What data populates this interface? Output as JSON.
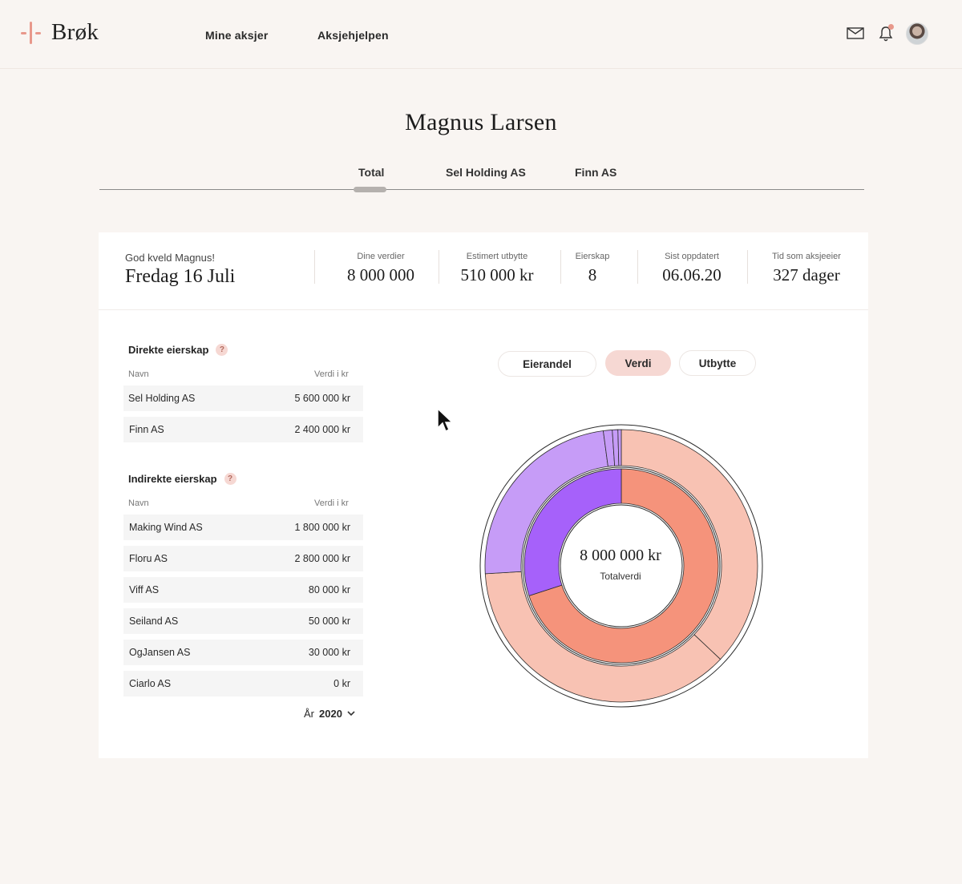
{
  "brand": {
    "name": "Brøk",
    "accent": "#e8988b"
  },
  "nav": {
    "items": [
      "Mine aksjer",
      "Aksjehjelpen"
    ]
  },
  "header_icons": [
    "mail-icon",
    "bell-icon",
    "avatar"
  ],
  "profile": {
    "name": "Magnus Larsen"
  },
  "tabs": [
    {
      "label": "Total",
      "active": true
    },
    {
      "label": "Sel Holding AS",
      "active": false
    },
    {
      "label": "Finn AS",
      "active": false
    }
  ],
  "summary": {
    "greeting": "God kveld Magnus!",
    "date": "Fredag 16 Juli",
    "stats": [
      {
        "label": "Dine verdier",
        "value": "8 000 000"
      },
      {
        "label": "Estimert utbytte",
        "value": "510 000 kr"
      },
      {
        "label": "Eierskap",
        "value": "8"
      },
      {
        "label": "Sist oppdatert",
        "value": "06.06.20"
      },
      {
        "label": "Tid som aksjeeier",
        "value": "327 dager"
      }
    ]
  },
  "direct": {
    "title": "Direkte eierskap",
    "col_name": "Navn",
    "col_value": "Verdi i kr",
    "rows": [
      {
        "name": "Sel Holding AS",
        "value": "5 600 000 kr"
      },
      {
        "name": "Finn AS",
        "value": "2 400 000 kr"
      }
    ]
  },
  "indirect": {
    "title": "Indirekte eierskap",
    "col_name": "Navn",
    "col_value": "Verdi i kr",
    "rows": [
      {
        "name": "Making Wind AS",
        "value": "1 800 000 kr"
      },
      {
        "name": "Floru AS",
        "value": "2 800 000 kr"
      },
      {
        "name": "Viff AS",
        "value": "80 000 kr"
      },
      {
        "name": "Seiland AS",
        "value": "50 000 kr"
      },
      {
        "name": "OgJansen AS",
        "value": "30 000 kr"
      },
      {
        "name": "Ciarlo AS",
        "value": "0 kr"
      }
    ]
  },
  "year_select": {
    "label": "År",
    "value": "2020"
  },
  "toggles": [
    {
      "label": "Eierandel",
      "active": false
    },
    {
      "label": "Verdi",
      "active": true
    },
    {
      "label": "Utbytte",
      "active": false
    }
  ],
  "chart": {
    "center_value": "8 000 000 kr",
    "center_label": "Totalverdi"
  },
  "chart_data": {
    "type": "pie",
    "colors": {
      "inner_salmon": "#f5937b",
      "inner_purple": "#a661fa",
      "outer_salmon": "#f8c2b3",
      "outer_purple": "#c69cf7"
    },
    "inner_ring": [
      {
        "value": 5600000,
        "color": "inner_salmon"
      },
      {
        "value": 2400000,
        "color": "inner_purple"
      }
    ],
    "outer_ring": [
      {
        "value": 2800000,
        "color": "outer_salmon"
      },
      {
        "value": 2800000,
        "color": "outer_salmon"
      },
      {
        "value": 1800000,
        "color": "outer_purple"
      },
      {
        "value": 80000,
        "color": "outer_purple"
      },
      {
        "value": 50000,
        "color": "outer_purple"
      },
      {
        "value": 30000,
        "color": "outer_purple"
      }
    ]
  }
}
